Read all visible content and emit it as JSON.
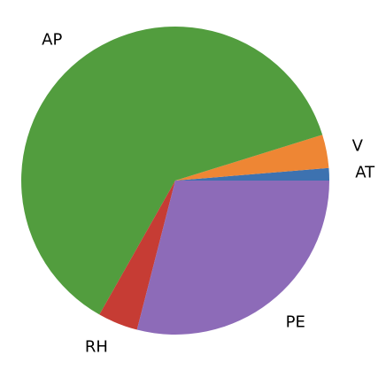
{
  "chart_data": {
    "type": "pie",
    "categories": [
      "AT",
      "V",
      "AP",
      "RH",
      "PE"
    ],
    "values": [
      1.3,
      3.5,
      62.0,
      4.2,
      29.0
    ],
    "colors": [
      "#3d72b0",
      "#ee8634",
      "#529d3e",
      "#c63c34",
      "#8d6bb8"
    ],
    "title": "",
    "start_angle_deg": 0,
    "direction": "counterclockwise",
    "legend": "none"
  }
}
